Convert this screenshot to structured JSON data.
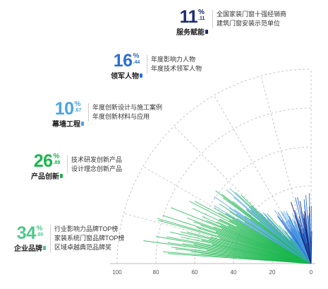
{
  "colors": {
    "navy": "#1b2a73",
    "blue": "#2b6fd6",
    "lightblue": "#4ba3e3",
    "green": "#19b64c",
    "grid": "#c8c8c8"
  },
  "stats": [
    {
      "id": "fuwu",
      "number": "11",
      "percent": "%",
      "decimal": ".11",
      "category": "服务赋能",
      "color": "#1b2a73",
      "lines": [
        "全国家装门窗十强经销商",
        "建筑门窗安装示范单位"
      ]
    },
    {
      "id": "lingjun",
      "number": "16",
      "percent": "%",
      "decimal": ".44",
      "category": "领军人物",
      "color": "#2b6fd6",
      "lines": [
        "年度影响力人物",
        "年度技术领军人物"
      ]
    },
    {
      "id": "muqiang",
      "number": "10",
      "percent": "%",
      "decimal": ".67",
      "category": "幕墙工程",
      "color": "#4ba3e3",
      "lines": [
        "年度创新设计与施工案例",
        "年度创新材料与应用"
      ]
    },
    {
      "id": "chanpin",
      "number": "26",
      "percent": "%",
      "decimal": ".89",
      "category": "产品创新",
      "color": "#19b64c",
      "lines": [
        "技术研发创新产品",
        "设计理念创新产品"
      ]
    },
    {
      "id": "qiye",
      "number": "34",
      "percent": "%",
      "decimal": ".00",
      "category": "企业品牌",
      "color": "#4cc98a",
      "lines": [
        "行业影响力品牌TOP榜",
        "家装系统门窗品牌TOP榜",
        "区域卓越典范品牌奖"
      ]
    }
  ],
  "chart_data": {
    "type": "polar-bar",
    "radial_axis": {
      "ticks": [
        "100",
        "80",
        "60",
        "40",
        "20",
        "0"
      ],
      "range": [
        0,
        100
      ]
    },
    "series": [
      {
        "category": "服务赋能",
        "value": 11.11
      },
      {
        "category": "领军人物",
        "value": 16.44
      },
      {
        "category": "幕墙工程",
        "value": 10.67
      },
      {
        "category": "产品创新",
        "value": 26.89
      },
      {
        "category": "企业品牌",
        "value": 34.0
      }
    ],
    "grid": true
  }
}
